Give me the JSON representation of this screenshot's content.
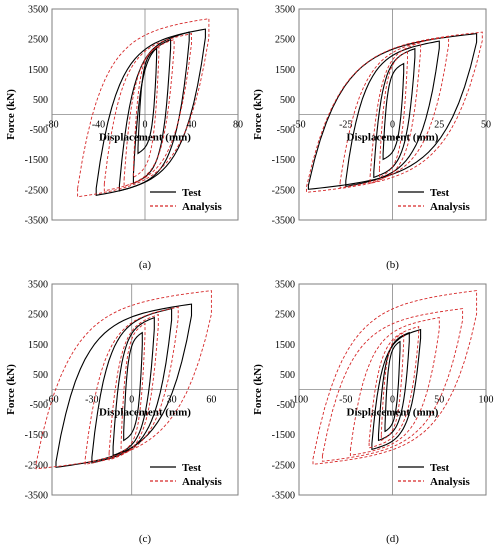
{
  "chart_data": [
    {
      "type": "line",
      "panel_label": "(a)",
      "xlabel": "Displacement (mm)",
      "ylabel": "Force (kN)",
      "xlim": [
        -80,
        80
      ],
      "ylim": [
        -3500,
        3500
      ],
      "xticks": [
        -80,
        -40,
        0,
        40,
        80
      ],
      "yticks": [
        -3500,
        -2500,
        -1500,
        -500,
        500,
        1500,
        2500,
        3500
      ],
      "legend": "bottom-right",
      "series": [
        {
          "name": "Test",
          "color": "#000000",
          "dash": "solid",
          "loops": [
            [
              10,
              6,
              1900,
              2200,
              -1100,
              -1300
            ],
            [
              22,
              10,
              2200,
              2500,
              -2000,
              -2300
            ],
            [
              38,
              22,
              2450,
              2750,
              -2350,
              -2550
            ],
            [
              52,
              42,
              2550,
              2850,
              -2450,
              -2700
            ]
          ]
        },
        {
          "name": "Analysis",
          "color": "#d62728",
          "dash": "dashed",
          "loops": [
            [
              12,
              10,
              2000,
              2300,
              -1800,
              -2100
            ],
            [
              25,
              18,
              2200,
              2500,
              -2150,
              -2400
            ],
            [
              40,
              35,
              2350,
              2700,
              -2300,
              -2550
            ],
            [
              55,
              58,
              2550,
              3200,
              -2450,
              -2750
            ]
          ]
        }
      ]
    },
    {
      "type": "line",
      "panel_label": "(b)",
      "xlabel": "Displacement (mm)",
      "ylabel": "Force (kN)",
      "xlim": [
        -50,
        50
      ],
      "ylim": [
        -3500,
        3500
      ],
      "xticks": [
        -50,
        -25,
        0,
        25,
        50
      ],
      "yticks": [
        -3500,
        -2500,
        -1500,
        -500,
        500,
        1500,
        2500,
        3500
      ],
      "legend": "bottom-right",
      "series": [
        {
          "name": "Test",
          "color": "#000000",
          "dash": "solid",
          "loops": [
            [
              6,
              5,
              1400,
              1700,
              -1300,
              -1500
            ],
            [
              12,
              10,
              1900,
              2200,
              -1900,
              -2100
            ],
            [
              25,
              25,
              2200,
              2450,
              -2200,
              -2400
            ],
            [
              45,
              45,
              2400,
              2700,
              -2350,
              -2500
            ]
          ]
        },
        {
          "name": "Analysis",
          "color": "#d62728",
          "dash": "dashed",
          "loops": [
            [
              8,
              7,
              1800,
              2100,
              -1800,
              -2100
            ],
            [
              15,
              12,
              2100,
              2400,
              -2050,
              -2300
            ],
            [
              30,
              28,
              2300,
              2600,
              -2250,
              -2450
            ],
            [
              48,
              46,
              2450,
              2750,
              -2400,
              -2600
            ]
          ]
        }
      ]
    },
    {
      "type": "line",
      "panel_label": "(c)",
      "xlabel": "Displacement (mm)",
      "ylabel": "Force (kN)",
      "xlim": [
        -60,
        80
      ],
      "ylim": [
        -3500,
        3500
      ],
      "xticks": [
        -60,
        -30,
        0,
        30,
        60
      ],
      "yticks": [
        -3500,
        -2500,
        -1500,
        -500,
        500,
        1500,
        2500,
        3500
      ],
      "legend": "bottom-right",
      "series": [
        {
          "name": "Test",
          "color": "#000000",
          "dash": "solid",
          "loops": [
            [
              8,
              6,
              1500,
              1900,
              -1400,
              -1700
            ],
            [
              17,
              14,
              2000,
              2400,
              -1900,
              -2200
            ],
            [
              30,
              30,
              2300,
              2700,
              -2250,
              -2450
            ],
            [
              45,
              57,
              2450,
              2850,
              -2400,
              -2600
            ]
          ]
        },
        {
          "name": "Analysis",
          "color": "#d62728",
          "dash": "dashed",
          "loops": [
            [
              10,
              8,
              1800,
              2200,
              -1800,
              -2100
            ],
            [
              20,
              17,
              2100,
              2500,
              -2100,
              -2350
            ],
            [
              35,
              35,
              2350,
              2750,
              -2300,
              -2500
            ],
            [
              60,
              72,
              2500,
              3300,
              -2450,
              -2650
            ]
          ]
        }
      ]
    },
    {
      "type": "line",
      "panel_label": "(d)",
      "xlabel": "Displacement (mm)",
      "ylabel": "Force (kN)",
      "xlim": [
        -100,
        100
      ],
      "ylim": [
        -3500,
        3500
      ],
      "xticks": [
        -100,
        -50,
        0,
        50,
        100
      ],
      "yticks": [
        -3500,
        -2500,
        -1500,
        -500,
        500,
        1500,
        2500,
        3500
      ],
      "legend": "bottom-right",
      "series": [
        {
          "name": "Test",
          "color": "#000000",
          "dash": "solid",
          "loops": [
            [
              8,
              8,
              1300,
              1600,
              -1200,
              -1400
            ],
            [
              18,
              15,
              1600,
              1900,
              -1500,
              -1700
            ],
            [
              30,
              22,
              1700,
              2000,
              -1800,
              -2000
            ]
          ]
        },
        {
          "name": "Analysis",
          "color": "#d62728",
          "dash": "dashed",
          "loops": [
            [
              12,
              12,
              1600,
              1900,
              -1500,
              -1700
            ],
            [
              28,
              25,
              1800,
              2100,
              -1750,
              -1950
            ],
            [
              50,
              45,
              2000,
              2400,
              -2000,
              -2200
            ],
            [
              75,
              75,
              2300,
              2700,
              -2200,
              -2400
            ],
            [
              90,
              85,
              2500,
              3300,
              -2300,
              -2500
            ]
          ]
        }
      ]
    }
  ]
}
